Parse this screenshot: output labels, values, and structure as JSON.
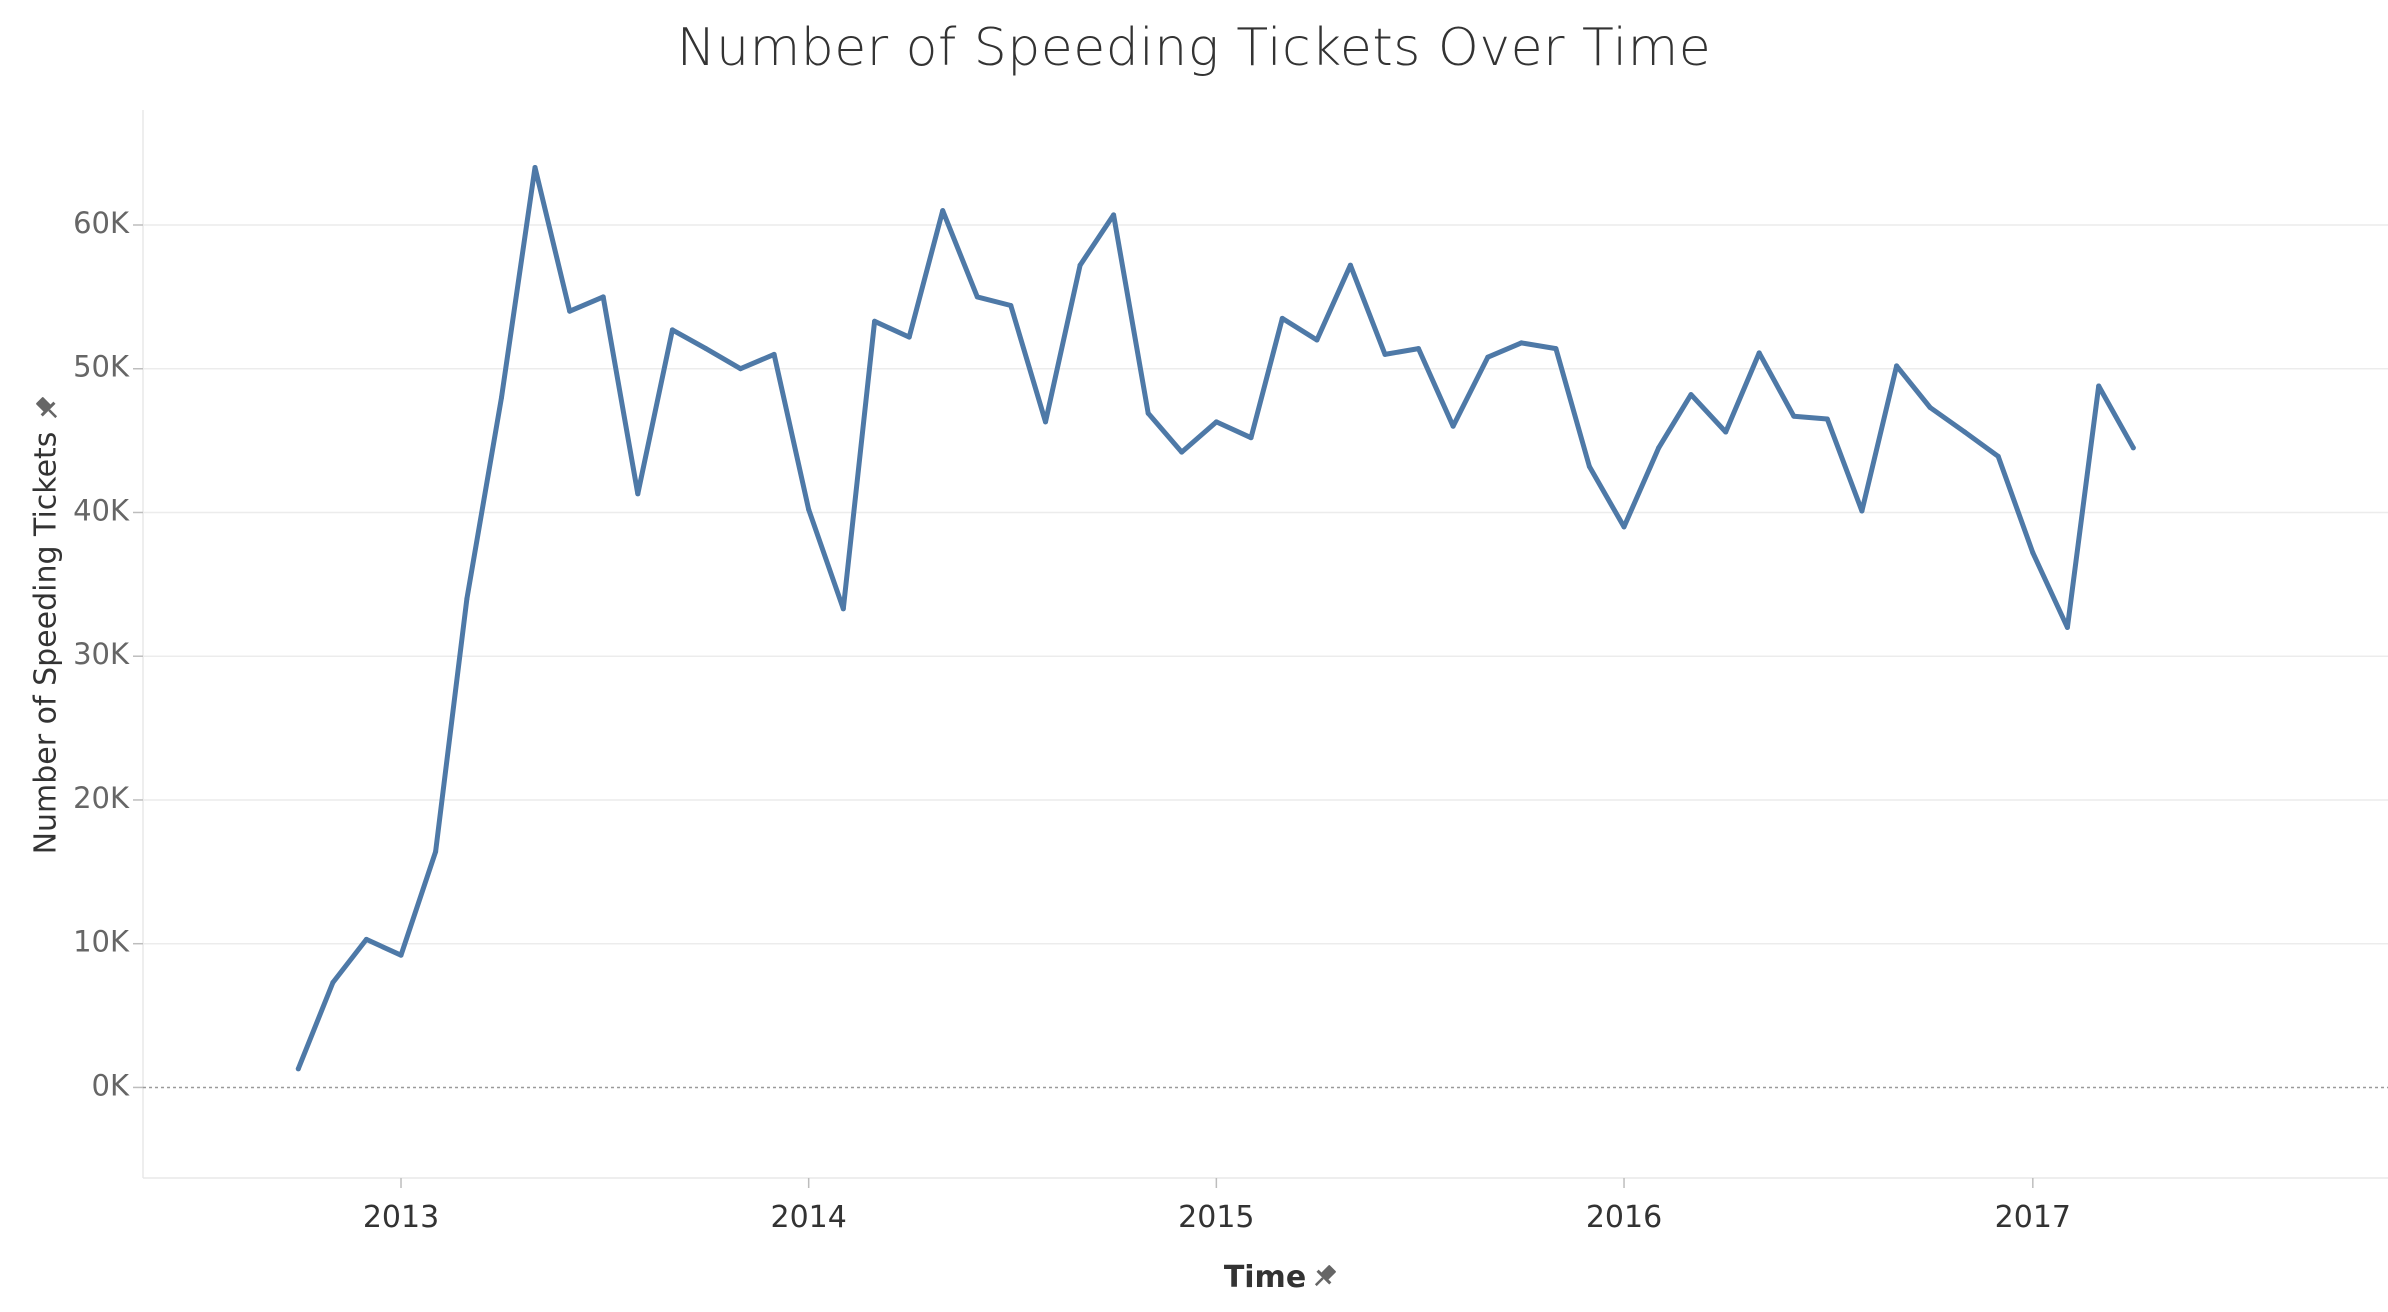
{
  "chart_data": {
    "type": "line",
    "title": "Number of Speeding Tickets Over Time",
    "xlabel": "Time",
    "ylabel": "Number of Speeding Tickets",
    "ylim": [
      -6300,
      68000
    ],
    "xlim": [
      "2012-05-15",
      "2017-11-15"
    ],
    "y_ticks": [
      0,
      10000,
      20000,
      30000,
      40000,
      50000,
      60000
    ],
    "y_tick_labels": [
      "0K",
      "10K",
      "20K",
      "30K",
      "40K",
      "50K",
      "60K"
    ],
    "x_ticks": [
      "2013-01-01",
      "2014-01-01",
      "2015-01-01",
      "2016-01-01",
      "2017-01-01"
    ],
    "x_tick_labels": [
      "2013",
      "2014",
      "2015",
      "2016",
      "2017"
    ],
    "grid": true,
    "legend": "none",
    "line_color": "#4e79a7",
    "series": [
      {
        "x": [
          "2012-10-01",
          "2012-11-01",
          "2012-12-01",
          "2013-01-01",
          "2013-02-01",
          "2013-03-01",
          "2013-04-01",
          "2013-05-01",
          "2013-06-01",
          "2013-07-01",
          "2013-08-01",
          "2013-09-01",
          "2013-10-01",
          "2013-11-01",
          "2013-12-01",
          "2014-01-01",
          "2014-02-01",
          "2014-03-01",
          "2014-04-01",
          "2014-05-01",
          "2014-06-01",
          "2014-07-01",
          "2014-08-01",
          "2014-09-01",
          "2014-10-01",
          "2014-11-01",
          "2014-12-01",
          "2015-01-01",
          "2015-02-01",
          "2015-03-01",
          "2015-04-01",
          "2015-05-01",
          "2015-06-01",
          "2015-07-01",
          "2015-08-01",
          "2015-09-01",
          "2015-10-01",
          "2015-11-01",
          "2015-12-01",
          "2016-01-01",
          "2016-02-01",
          "2016-03-01",
          "2016-04-01",
          "2016-05-01",
          "2016-06-01",
          "2016-07-01",
          "2016-08-01",
          "2016-09-01",
          "2016-10-01",
          "2016-11-01",
          "2016-12-01",
          "2017-01-01",
          "2017-02-01",
          "2017-03-01",
          "2017-04-01"
        ],
        "values": [
          1300,
          7300,
          10300,
          9200,
          16400,
          34000,
          48000,
          64000,
          54000,
          55000,
          41300,
          52700,
          51400,
          50000,
          51000,
          40200,
          33300,
          53300,
          52200,
          61000,
          55000,
          54400,
          46300,
          57200,
          60700,
          46900,
          44200,
          46300,
          45200,
          53500,
          52000,
          57200,
          51000,
          51400,
          46000,
          50800,
          51800,
          51400,
          43200,
          39000,
          44500,
          48200,
          45600,
          51100,
          46700,
          46500,
          40100,
          50200,
          47300,
          45600,
          43900,
          37200,
          32000,
          48800,
          44500
        ]
      }
    ]
  }
}
